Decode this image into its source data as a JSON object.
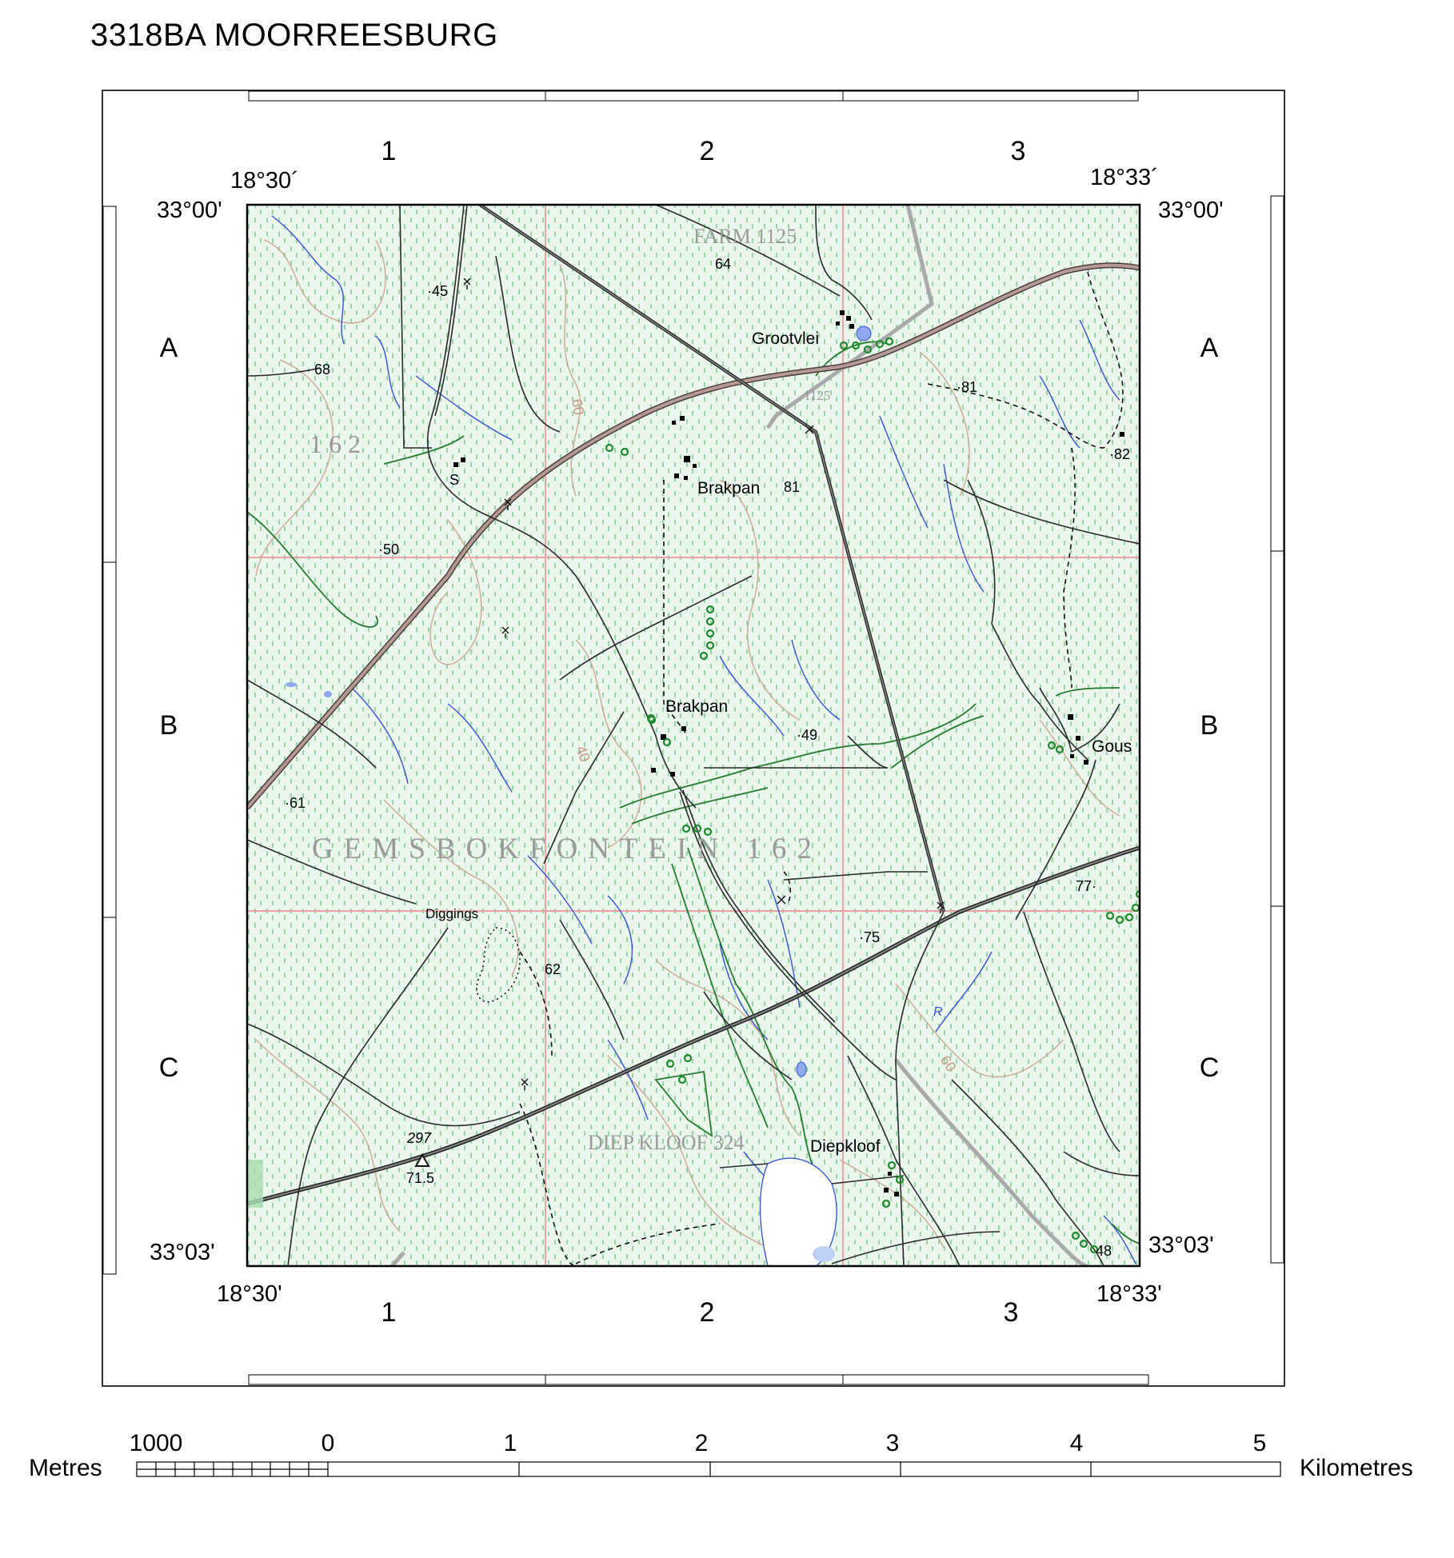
{
  "title": "3318BA MOORREESBURG",
  "grid": {
    "columns_top": [
      "1",
      "2",
      "3"
    ],
    "columns_bottom": [
      "1",
      "2",
      "3"
    ],
    "rows_left": [
      "A",
      "B",
      "C"
    ],
    "rows_right": [
      "A",
      "B",
      "C"
    ]
  },
  "coords": {
    "top_left_lon": "18°30´",
    "top_right_lon": "18°33´",
    "top_left_lat": "33°00'",
    "top_right_lat": "33°00'",
    "bottom_left_lat": "33°03'",
    "bottom_right_lat": "33°03'",
    "bottom_left_lon": "18°30'",
    "bottom_right_lon": "18°33'"
  },
  "places": {
    "grootvlei": "Grootvlei",
    "brakpan_north": "Brakpan",
    "brakpan_south": "Brakpan",
    "gous": "Gous",
    "diepkloof": "Diepkloof",
    "diggings": "Diggings",
    "s_label": "S",
    "r_label": "R"
  },
  "farms": {
    "farm1125": "FARM 1125",
    "f1125_small": "1125",
    "f162_small": "1 6 2",
    "gemsbokfontein": "GEMSBOKFONTEIN 162",
    "diepkloof_farm": "DIEP KLOOF 324"
  },
  "spot_heights": {
    "h64": "64",
    "h45": "·45",
    "h68": "68",
    "h81a": "·81",
    "h82": "·82",
    "h81b": "81",
    "h50": "·50",
    "h49": "·49",
    "h61": "·61",
    "h77": "77·",
    "h75": "·75",
    "h62": "62",
    "h48": "48",
    "trig_num": "297",
    "trig_height": "71.5"
  },
  "contours": {
    "c60a": "60",
    "c40": "40",
    "c60b": "60"
  },
  "scale": {
    "left_unit": "Metres",
    "right_unit": "Kilometres",
    "ticks": [
      "1000",
      "0",
      "1",
      "2",
      "3",
      "4",
      "5"
    ]
  },
  "colors": {
    "map_fill": "#e9f4ea",
    "vegetation_dash": "#5fbf7a",
    "grid_line": "#e8a0a0",
    "water": "#2f4fd6",
    "contour": "#c49a82",
    "vegetation_outline": "#1f7a2a",
    "major_road": "#9a8c88",
    "railway": "#a8a8a8",
    "road": "#2a2a2a",
    "farm_text": "#9a9a9a"
  }
}
